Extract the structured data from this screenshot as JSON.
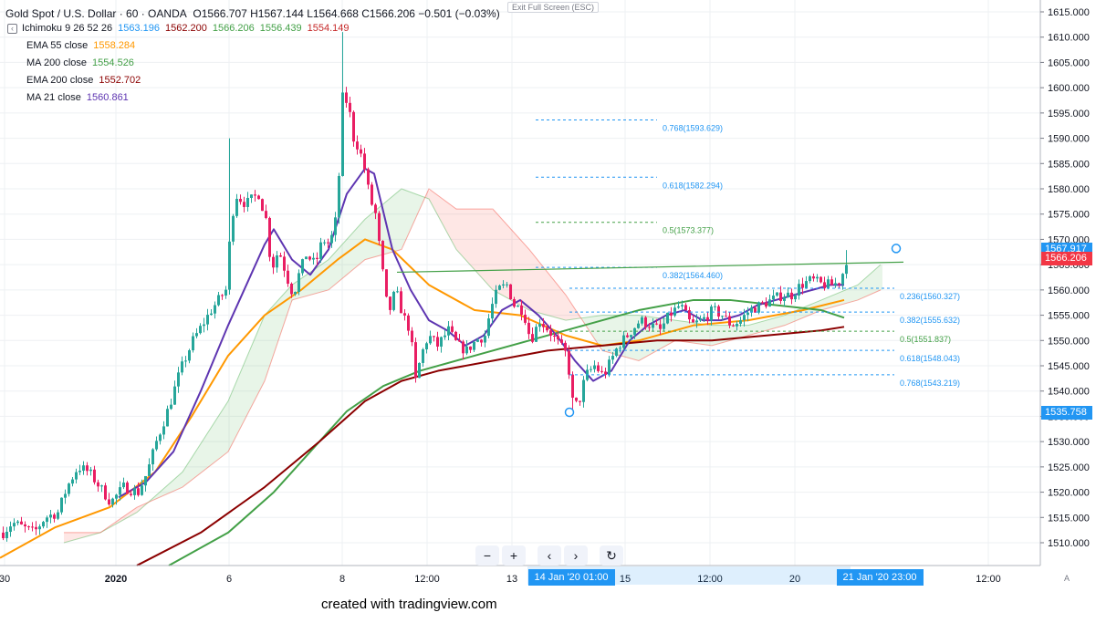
{
  "header": {
    "symbol": "Gold Spot / U.S. Dollar · 60 · OANDA",
    "ohlc": "O1566.707 H1567.144 L1564.668 C1566.206 −0.501 (−0.03%)"
  },
  "exit_full_screen": "Exit Full Screen (ESC)",
  "indicators": [
    {
      "label": "Ichimoku 9 26 52 26",
      "values": [
        {
          "text": "1563.196",
          "color": "#2196f3"
        },
        {
          "text": "1562.200",
          "color": "#8b0000"
        },
        {
          "text": "1566.206",
          "color": "#43a047"
        },
        {
          "text": "1556.439",
          "color": "#43a047"
        },
        {
          "text": "1554.149",
          "color": "#c62828"
        }
      ]
    },
    {
      "label": "EMA 55 close",
      "values": [
        {
          "text": "1558.284",
          "color": "#ff9800"
        }
      ]
    },
    {
      "label": "MA 200 close",
      "values": [
        {
          "text": "1554.526",
          "color": "#43a047"
        }
      ]
    },
    {
      "label": "EMA 200 close",
      "values": [
        {
          "text": "1552.702",
          "color": "#8b0000"
        }
      ]
    },
    {
      "label": "MA 21 close",
      "values": [
        {
          "text": "1560.861",
          "color": "#5e35b1"
        }
      ]
    }
  ],
  "toolbar": {
    "zoom_out": "−",
    "zoom_in": "+",
    "scroll_left": "‹",
    "scroll_right": "›",
    "reset": "↻"
  },
  "watermark": "created with tradingview.com",
  "price_tags": [
    {
      "text": "1567.917",
      "price": 1567.917,
      "color": "#2196f3"
    },
    {
      "text": "1566.206",
      "price": 1566.206,
      "color": "#f23645"
    },
    {
      "text": "1535.758",
      "price": 1535.758,
      "color": "#2196f3"
    }
  ],
  "time_tags": [
    {
      "text": "14 Jan '20   01:00",
      "t": 597.5
    },
    {
      "text": "21 Jan '20   23:00",
      "t": 935.5
    }
  ],
  "auto_label": "A",
  "colors": {
    "up": "#26a69a",
    "down": "#e91e63",
    "grid": "#eef0f3",
    "ema55": "#ff9800",
    "ma200": "#43a047",
    "ema200": "#8b0000",
    "ma21": "#5e35b1",
    "fib": "#2196f3",
    "fib_mid": "#43a047"
  },
  "chart_data": {
    "type": "candlestick",
    "title": "Gold Spot / U.S. Dollar · 60 · OANDA",
    "timeframe": "60",
    "ylim": [
      1505.5,
      1616.5
    ],
    "y_ticks": [
      1510,
      1515,
      1520,
      1525,
      1530,
      1535,
      1540,
      1545,
      1550,
      1555,
      1560,
      1565,
      1570,
      1575,
      1580,
      1585,
      1590,
      1595,
      1600,
      1605,
      1610,
      1615
    ],
    "x_ticks": [
      {
        "label": "30",
        "t": 5
      },
      {
        "label": "2020",
        "t": 127
      },
      {
        "label": "6",
        "t": 251
      },
      {
        "label": "8",
        "t": 375
      },
      {
        "label": "12:00",
        "t": 468
      },
      {
        "label": "13",
        "t": 561
      },
      {
        "label": "15",
        "t": 685
      },
      {
        "label": "12:00",
        "t": 778
      },
      {
        "label": "20",
        "t": 871
      },
      {
        "label": "12:00",
        "t": 1083
      }
    ],
    "price_anchors": [
      [
        2,
        1512
      ],
      [
        12,
        1514
      ],
      [
        24,
        1513
      ],
      [
        36,
        1512
      ],
      [
        48,
        1515
      ],
      [
        62,
        1516
      ],
      [
        72,
        1521
      ],
      [
        84,
        1525
      ],
      [
        96,
        1524
      ],
      [
        108,
        1521
      ],
      [
        120,
        1518
      ],
      [
        134,
        1521
      ],
      [
        150,
        1520
      ],
      [
        160,
        1524
      ],
      [
        170,
        1530
      ],
      [
        184,
        1537
      ],
      [
        196,
        1544
      ],
      [
        210,
        1550
      ],
      [
        230,
        1556
      ],
      [
        246,
        1560
      ],
      [
        250,
        1569
      ],
      [
        256,
        1579
      ],
      [
        268,
        1577
      ],
      [
        282,
        1579
      ],
      [
        290,
        1574
      ],
      [
        296,
        1564
      ],
      [
        304,
        1568
      ],
      [
        314,
        1562
      ],
      [
        320,
        1559
      ],
      [
        326,
        1563
      ],
      [
        334,
        1567
      ],
      [
        344,
        1565
      ],
      [
        352,
        1570
      ],
      [
        360,
        1569
      ],
      [
        368,
        1575
      ],
      [
        374,
        1598
      ],
      [
        380,
        1597
      ],
      [
        386,
        1590
      ],
      [
        392,
        1588
      ],
      [
        398,
        1584
      ],
      [
        404,
        1578
      ],
      [
        410,
        1575
      ],
      [
        416,
        1566
      ],
      [
        424,
        1555
      ],
      [
        432,
        1560
      ],
      [
        440,
        1555
      ],
      [
        448,
        1552
      ],
      [
        454,
        1542
      ],
      [
        460,
        1547
      ],
      [
        468,
        1551
      ],
      [
        478,
        1549
      ],
      [
        490,
        1552
      ],
      [
        500,
        1549
      ],
      [
        510,
        1548
      ],
      [
        520,
        1550
      ],
      [
        530,
        1551
      ],
      [
        536,
        1556
      ],
      [
        544,
        1560
      ],
      [
        554,
        1561
      ],
      [
        562,
        1557
      ],
      [
        572,
        1556
      ],
      [
        580,
        1550
      ],
      [
        590,
        1554
      ],
      [
        600,
        1552
      ],
      [
        612,
        1549
      ],
      [
        620,
        1547
      ],
      [
        626,
        1538
      ],
      [
        632,
        1537
      ],
      [
        640,
        1543
      ],
      [
        650,
        1545
      ],
      [
        660,
        1543
      ],
      [
        668,
        1546
      ],
      [
        676,
        1549
      ],
      [
        686,
        1551
      ],
      [
        700,
        1554
      ],
      [
        712,
        1553
      ],
      [
        722,
        1552
      ],
      [
        732,
        1555
      ],
      [
        744,
        1557
      ],
      [
        756,
        1553
      ],
      [
        768,
        1554
      ],
      [
        780,
        1556
      ],
      [
        790,
        1555
      ],
      [
        800,
        1553
      ],
      [
        810,
        1554
      ],
      [
        820,
        1556
      ],
      [
        832,
        1557
      ],
      [
        844,
        1558
      ],
      [
        856,
        1559
      ],
      [
        866,
        1559
      ],
      [
        876,
        1561
      ],
      [
        888,
        1562
      ],
      [
        900,
        1561
      ],
      [
        912,
        1561
      ],
      [
        920,
        1562
      ],
      [
        926,
        1566
      ]
    ],
    "price_spikes": [
      [
        250,
        1590
      ],
      [
        374,
        1611
      ],
      [
        412,
        1572
      ],
      [
        556,
        1563
      ],
      [
        626,
        1535.8
      ],
      [
        926,
        1567.9
      ]
    ],
    "series": [
      {
        "name": "EMA 55 close",
        "color": "#ff9800",
        "points": [
          [
            0,
            1507
          ],
          [
            60,
            1513
          ],
          [
            120,
            1517
          ],
          [
            170,
            1524
          ],
          [
            210,
            1535
          ],
          [
            250,
            1547
          ],
          [
            290,
            1555
          ],
          [
            330,
            1560
          ],
          [
            370,
            1566
          ],
          [
            400,
            1570
          ],
          [
            430,
            1568
          ],
          [
            470,
            1561
          ],
          [
            520,
            1556
          ],
          [
            570,
            1555
          ],
          [
            620,
            1551
          ],
          [
            660,
            1549
          ],
          [
            700,
            1550
          ],
          [
            760,
            1553
          ],
          [
            820,
            1554
          ],
          [
            880,
            1556
          ],
          [
            925,
            1558
          ]
        ]
      },
      {
        "name": "MA 200 close",
        "color": "#43a047",
        "points": [
          [
            185,
            1505.5
          ],
          [
            250,
            1512
          ],
          [
            300,
            1520
          ],
          [
            340,
            1528
          ],
          [
            380,
            1536
          ],
          [
            420,
            1541
          ],
          [
            460,
            1544
          ],
          [
            520,
            1547
          ],
          [
            580,
            1550
          ],
          [
            640,
            1553
          ],
          [
            700,
            1556
          ],
          [
            760,
            1558
          ],
          [
            800,
            1558
          ],
          [
            850,
            1557
          ],
          [
            900,
            1556
          ],
          [
            925,
            1554.5
          ]
        ]
      },
      {
        "name": "EMA 200 close",
        "color": "#8b0000",
        "points": [
          [
            150,
            1505.5
          ],
          [
            220,
            1512
          ],
          [
            290,
            1521
          ],
          [
            350,
            1530
          ],
          [
            400,
            1538
          ],
          [
            440,
            1542
          ],
          [
            480,
            1544
          ],
          [
            540,
            1546
          ],
          [
            600,
            1548
          ],
          [
            660,
            1549
          ],
          [
            720,
            1550
          ],
          [
            780,
            1550
          ],
          [
            840,
            1551
          ],
          [
            900,
            1552
          ],
          [
            925,
            1552.7
          ]
        ]
      },
      {
        "name": "MA 21 close",
        "color": "#5e35b1",
        "points": [
          [
            130,
            1519
          ],
          [
            160,
            1522
          ],
          [
            190,
            1528
          ],
          [
            220,
            1540
          ],
          [
            250,
            1553
          ],
          [
            270,
            1561
          ],
          [
            290,
            1569
          ],
          [
            300,
            1572
          ],
          [
            320,
            1566
          ],
          [
            340,
            1563
          ],
          [
            360,
            1568
          ],
          [
            380,
            1579
          ],
          [
            400,
            1584
          ],
          [
            410,
            1583
          ],
          [
            430,
            1568
          ],
          [
            450,
            1560
          ],
          [
            470,
            1554
          ],
          [
            490,
            1552
          ],
          [
            510,
            1549
          ],
          [
            530,
            1551
          ],
          [
            550,
            1556
          ],
          [
            570,
            1558
          ],
          [
            590,
            1555
          ],
          [
            610,
            1551
          ],
          [
            630,
            1546
          ],
          [
            650,
            1542
          ],
          [
            670,
            1544
          ],
          [
            690,
            1550
          ],
          [
            710,
            1553
          ],
          [
            730,
            1555
          ],
          [
            750,
            1556
          ],
          [
            770,
            1554
          ],
          [
            790,
            1554
          ],
          [
            810,
            1555
          ],
          [
            830,
            1557
          ],
          [
            850,
            1558
          ],
          [
            870,
            1559
          ],
          [
            890,
            1560
          ],
          [
            910,
            1561
          ],
          [
            925,
            1561
          ]
        ]
      }
    ],
    "ichimoku_spans": {
      "span_a": [
        [
          70,
          1510
        ],
        [
          110,
          1512
        ],
        [
          150,
          1516
        ],
        [
          200,
          1524
        ],
        [
          250,
          1538
        ],
        [
          290,
          1555
        ],
        [
          320,
          1561
        ],
        [
          360,
          1566
        ],
        [
          400,
          1574
        ],
        [
          440,
          1580
        ],
        [
          470,
          1578
        ],
        [
          500,
          1568
        ],
        [
          540,
          1560
        ],
        [
          580,
          1556
        ],
        [
          620,
          1554
        ],
        [
          660,
          1555
        ],
        [
          700,
          1555
        ],
        [
          740,
          1554
        ],
        [
          780,
          1553
        ],
        [
          820,
          1553
        ],
        [
          860,
          1555
        ],
        [
          900,
          1558
        ],
        [
          940,
          1561
        ],
        [
          965,
          1565
        ]
      ],
      "span_b": [
        [
          70,
          1512
        ],
        [
          110,
          1512
        ],
        [
          150,
          1517
        ],
        [
          200,
          1521
        ],
        [
          250,
          1528
        ],
        [
          290,
          1542
        ],
        [
          320,
          1558
        ],
        [
          360,
          1560
        ],
        [
          400,
          1566
        ],
        [
          440,
          1568
        ],
        [
          470,
          1580
        ],
        [
          500,
          1576
        ],
        [
          540,
          1576
        ],
        [
          580,
          1568
        ],
        [
          620,
          1559
        ],
        [
          660,
          1548
        ],
        [
          700,
          1546
        ],
        [
          740,
          1550
        ],
        [
          780,
          1549
        ],
        [
          820,
          1551
        ],
        [
          860,
          1553
        ],
        [
          900,
          1556
        ],
        [
          940,
          1558
        ],
        [
          965,
          1560
        ]
      ]
    },
    "fib_set_1": {
      "x_range": [
        587,
        720
      ],
      "levels": [
        {
          "ratio": "0.768",
          "price": 1593.629,
          "label": "0.768(1593.629)"
        },
        {
          "ratio": "0.618",
          "price": 1582.294,
          "label": "0.618(1582.294)"
        },
        {
          "ratio": "0.5",
          "price": 1573.377,
          "label": "0.5(1573.377)"
        },
        {
          "ratio": "0.382",
          "price": 1564.46,
          "label": "0.382(1564.460)"
        }
      ]
    },
    "fib_set_2": {
      "x_range": [
        624,
        980
      ],
      "levels": [
        {
          "ratio": "0.236",
          "price": 1560.327,
          "label": "0.236(1560.327)"
        },
        {
          "ratio": "0.382",
          "price": 1555.632,
          "label": "0.382(1555.632)"
        },
        {
          "ratio": "0.5",
          "price": 1551.837,
          "label": "0.5(1551.837)"
        },
        {
          "ratio": "0.618",
          "price": 1548.043,
          "label": "0.618(1548.043)"
        },
        {
          "ratio": "0.768",
          "price": 1543.219,
          "label": "0.768(1543.219)"
        }
      ]
    },
    "trendline": [
      [
        435,
        1563.5
      ],
      [
        990,
        1565.5
      ]
    ],
    "markers": [
      [
        624,
        1535.8
      ],
      [
        982,
        1568.2
      ]
    ]
  }
}
